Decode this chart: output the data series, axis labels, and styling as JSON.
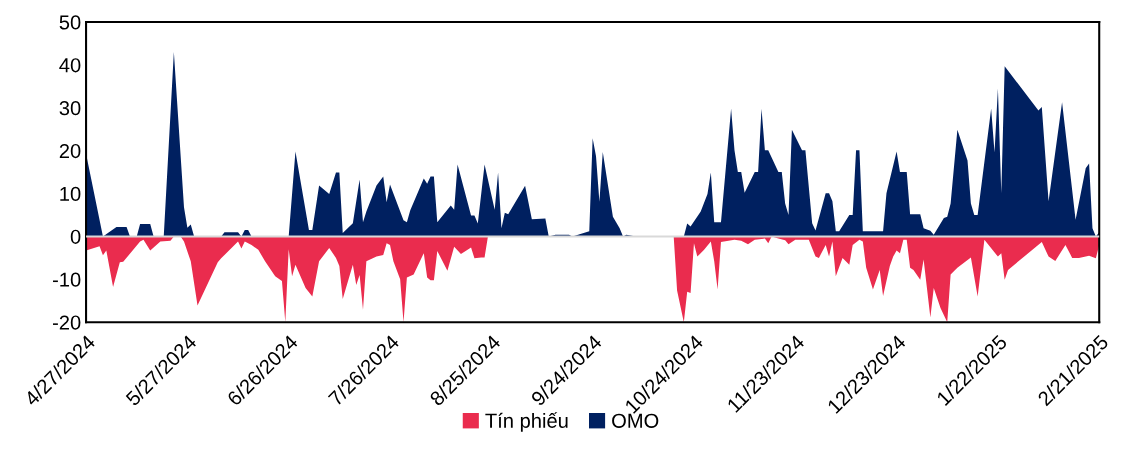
{
  "chart_data": {
    "type": "area",
    "ylim": [
      -20,
      50
    ],
    "yticks": [
      -20,
      -10,
      0,
      10,
      20,
      30,
      40,
      50
    ],
    "xlim": [
      "2024-04-27",
      "2025-02-21"
    ],
    "xticks": [
      {
        "value": "2024-04-27",
        "label": "4/27/2024"
      },
      {
        "value": "2024-05-27",
        "label": "5/27/2024"
      },
      {
        "value": "2024-06-26",
        "label": "6/26/2024"
      },
      {
        "value": "2024-07-26",
        "label": "7/26/2024"
      },
      {
        "value": "2024-08-25",
        "label": "8/25/2024"
      },
      {
        "value": "2024-09-24",
        "label": "9/24/2024"
      },
      {
        "value": "2024-10-24",
        "label": "10/24/2024"
      },
      {
        "value": "2024-11-23",
        "label": "11/23/2024"
      },
      {
        "value": "2024-12-23",
        "label": "12/23/2024"
      },
      {
        "value": "2025-01-22",
        "label": "1/22/2025"
      },
      {
        "value": "2025-02-21",
        "label": "2/21/2025"
      }
    ],
    "grid": false,
    "legend": "bottom",
    "ref_lines": [
      {
        "axis": "y",
        "value": 0,
        "label": null,
        "color": "#d9d9d9"
      }
    ],
    "series": [
      {
        "name": "Tín phiếu",
        "color": "#ea2c4e",
        "x": [
          "2024-04-27",
          "2024-05-01",
          "2024-05-02",
          "2024-05-03",
          "2024-05-05",
          "2024-05-07",
          "2024-05-08",
          "2024-05-13",
          "2024-05-14",
          "2024-05-16",
          "2024-05-19",
          "2024-05-22",
          "2024-05-23",
          "2024-05-25",
          "2024-05-26",
          "2024-05-28",
          "2024-05-30",
          "2024-06-05",
          "2024-06-06",
          "2024-06-11",
          "2024-06-12",
          "2024-06-13",
          "2024-06-15",
          "2024-06-17",
          "2024-06-19",
          "2024-06-22",
          "2024-06-24",
          "2024-06-25",
          "2024-06-26",
          "2024-06-27",
          "2024-06-28",
          "2024-07-01",
          "2024-07-03",
          "2024-07-05",
          "2024-07-08",
          "2024-07-10",
          "2024-07-11",
          "2024-07-12",
          "2024-07-15",
          "2024-07-16",
          "2024-07-17",
          "2024-07-18",
          "2024-07-19",
          "2024-07-22",
          "2024-07-24",
          "2024-07-25",
          "2024-07-26",
          "2024-07-27",
          "2024-07-29",
          "2024-07-30",
          "2024-07-31",
          "2024-08-02",
          "2024-08-05",
          "2024-08-06",
          "2024-08-07",
          "2024-08-08",
          "2024-08-09",
          "2024-08-12",
          "2024-08-14",
          "2024-08-16",
          "2024-08-19",
          "2024-08-20",
          "2024-08-22",
          "2024-08-23",
          "2024-08-24",
          "2024-10-18",
          "2024-10-19",
          "2024-10-21",
          "2024-10-22",
          "2024-10-23",
          "2024-10-24",
          "2024-10-25",
          "2024-10-27",
          "2024-10-29",
          "2024-10-30",
          "2024-10-31",
          "2024-11-01",
          "2024-11-05",
          "2024-11-07",
          "2024-11-09",
          "2024-11-11",
          "2024-11-14",
          "2024-11-15",
          "2024-11-16",
          "2024-11-18",
          "2024-11-20",
          "2024-11-21",
          "2024-11-23",
          "2024-11-27",
          "2024-11-29",
          "2024-11-30",
          "2024-12-02",
          "2024-12-03",
          "2024-12-04",
          "2024-12-05",
          "2024-12-07",
          "2024-12-09",
          "2024-12-10",
          "2024-12-12",
          "2024-12-13",
          "2024-12-14",
          "2024-12-16",
          "2024-12-18",
          "2024-12-19",
          "2024-12-21",
          "2024-12-22",
          "2024-12-23",
          "2024-12-24",
          "2024-12-25",
          "2024-12-26",
          "2024-12-27",
          "2024-12-28",
          "2024-12-30",
          "2024-12-31",
          "2025-01-02",
          "2025-01-03",
          "2025-01-05",
          "2025-01-07",
          "2025-01-08",
          "2025-01-10",
          "2025-01-14",
          "2025-01-16",
          "2025-01-18",
          "2025-01-22",
          "2025-01-23",
          "2025-01-24",
          "2025-01-25",
          "2025-02-04",
          "2025-02-06",
          "2025-02-08",
          "2025-02-11",
          "2025-02-13",
          "2025-02-15",
          "2025-02-18",
          "2025-02-20",
          "2025-02-21"
        ],
        "values": [
          -3.3,
          -2.3,
          -4.4,
          -3.3,
          -11.8,
          -6,
          -5.9,
          -1.2,
          -0.8,
          -3.3,
          -1.2,
          -1,
          0,
          0,
          -1.2,
          -5.8,
          -16.1,
          -6,
          -5.1,
          -1.2,
          -2.8,
          -1.2,
          -2,
          -3.1,
          -5.8,
          -9.3,
          -10.4,
          -20,
          -3,
          -9.3,
          -6.6,
          -12,
          -14,
          -5.8,
          -2.7,
          -5,
          -6.9,
          -14.6,
          -6.6,
          -11.3,
          -9,
          -17.1,
          -5.8,
          -4.7,
          -4.3,
          -1.6,
          -2,
          -5.8,
          -10,
          -20,
          -9.6,
          -8.9,
          -3.9,
          -9.6,
          -10.2,
          -10.2,
          -3.4,
          -8,
          -2.4,
          -4.1,
          -2.6,
          -5.1,
          -4.9,
          -4.9,
          0,
          0,
          -12.6,
          -20,
          -12.9,
          -13.2,
          -1.6,
          -4.7,
          -3.1,
          -1.2,
          -5.8,
          -12.4,
          -1.3,
          -0.8,
          -1,
          -1.8,
          -0.8,
          -0.5,
          -1.6,
          0,
          -0.5,
          -0.9,
          -1.8,
          -0.8,
          -0.8,
          -4.7,
          -5,
          -2,
          -4.7,
          -1.2,
          -9.3,
          -5,
          -6.6,
          -2,
          -0.8,
          -1.2,
          -7.3,
          -12.4,
          -7.8,
          -13.9,
          -6.9,
          -4.7,
          -3.3,
          -3.9,
          -0.8,
          -0.8,
          -7.3,
          -7.8,
          -10.1,
          -5.4,
          -18.9,
          -12,
          -16.7,
          -20,
          -8.9,
          -7.3,
          -4.9,
          -14,
          -0.8,
          -4.7,
          -3.9,
          -10.1,
          -7.8,
          -1.3,
          -4.7,
          -5.7,
          -2,
          -5,
          -5,
          -4.5,
          -5.1,
          -2
        ]
      },
      {
        "name": "OMO",
        "color": "#002060",
        "x": [
          "2024-04-27",
          "2024-05-02",
          "2024-05-06",
          "2024-05-09",
          "2024-05-10",
          "2024-05-12",
          "2024-05-13",
          "2024-05-16",
          "2024-05-17",
          "2024-05-20",
          "2024-05-23",
          "2024-05-26",
          "2024-05-27",
          "2024-05-28",
          "2024-05-29",
          "2024-06-06",
          "2024-06-07",
          "2024-06-11",
          "2024-06-12",
          "2024-06-13",
          "2024-06-14",
          "2024-06-15",
          "2024-06-26",
          "2024-06-28",
          "2024-07-02",
          "2024-07-03",
          "2024-07-05",
          "2024-07-08",
          "2024-07-10",
          "2024-07-11",
          "2024-07-12",
          "2024-07-15",
          "2024-07-17",
          "2024-07-18",
          "2024-07-19",
          "2024-07-22",
          "2024-07-24",
          "2024-07-25",
          "2024-07-26",
          "2024-07-30",
          "2024-07-31",
          "2024-08-01",
          "2024-08-05",
          "2024-08-06",
          "2024-08-07",
          "2024-08-08",
          "2024-08-09",
          "2024-08-13",
          "2024-08-14",
          "2024-08-15",
          "2024-08-19",
          "2024-08-20",
          "2024-08-21",
          "2024-08-23",
          "2024-08-26",
          "2024-08-27",
          "2024-08-28",
          "2024-08-29",
          "2024-08-30",
          "2024-09-04",
          "2024-09-06",
          "2024-09-10",
          "2024-09-11",
          "2024-09-13",
          "2024-09-17",
          "2024-09-18",
          "2024-09-23",
          "2024-09-24",
          "2024-09-25",
          "2024-09-26",
          "2024-09-27",
          "2024-09-30",
          "2024-10-02",
          "2024-10-03",
          "2024-10-04",
          "2024-10-06",
          "2024-10-07",
          "2024-10-21",
          "2024-10-22",
          "2024-10-23",
          "2024-10-26",
          "2024-10-28",
          "2024-10-29",
          "2024-10-30",
          "2024-11-01",
          "2024-11-04",
          "2024-11-05",
          "2024-11-06",
          "2024-11-07",
          "2024-11-08",
          "2024-11-11",
          "2024-11-12",
          "2024-11-13",
          "2024-11-14",
          "2024-11-15",
          "2024-11-18",
          "2024-11-19",
          "2024-11-20",
          "2024-11-21",
          "2024-11-22",
          "2024-11-25",
          "2024-11-26",
          "2024-11-28",
          "2024-11-29",
          "2024-12-02",
          "2024-12-03",
          "2024-12-04",
          "2024-12-05",
          "2024-12-06",
          "2024-12-09",
          "2024-12-10",
          "2024-12-11",
          "2024-12-12",
          "2024-12-13",
          "2024-12-19",
          "2024-12-20",
          "2024-12-23",
          "2024-12-24",
          "2024-12-26",
          "2024-12-27",
          "2024-12-30",
          "2024-12-31",
          "2025-01-02",
          "2025-01-03",
          "2025-01-06",
          "2025-01-07",
          "2025-01-08",
          "2025-01-10",
          "2025-01-13",
          "2025-01-14",
          "2025-01-15",
          "2025-01-16",
          "2025-01-20",
          "2025-01-21",
          "2025-01-22",
          "2025-01-23",
          "2025-01-24",
          "2025-02-03",
          "2025-02-04",
          "2025-02-06",
          "2025-02-10",
          "2025-02-14",
          "2025-02-17",
          "2025-02-18",
          "2025-02-19",
          "2025-02-20",
          "2025-02-21"
        ],
        "values": [
          19.3,
          0,
          2.2,
          2.2,
          0,
          0,
          2.9,
          2.9,
          0,
          0,
          43,
          6.8,
          2,
          2.8,
          0,
          0,
          1,
          1,
          0,
          1.5,
          1.5,
          0,
          0,
          19.8,
          1.5,
          1.5,
          11.9,
          9.9,
          14.9,
          14.9,
          0.8,
          3.1,
          13.3,
          3.3,
          5.8,
          11.9,
          14,
          8,
          12.1,
          3.8,
          3.3,
          6.1,
          13.5,
          12.3,
          14,
          14,
          3.3,
          7.2,
          6.2,
          16.8,
          4.9,
          4.9,
          3,
          16.8,
          6.2,
          14.9,
          1.9,
          5.5,
          5.2,
          11.8,
          4,
          4.2,
          0,
          0.4,
          0.4,
          0,
          1.2,
          22.9,
          18.7,
          8.1,
          19.7,
          4.6,
          1.9,
          0,
          0.4,
          0.1,
          0,
          0,
          3,
          2.3,
          5.8,
          9.9,
          14.9,
          3.3,
          3.3,
          29.8,
          20.1,
          15,
          15,
          10.2,
          15,
          15,
          29.8,
          20.1,
          20.1,
          15,
          15,
          7.7,
          5,
          24.9,
          20.1,
          20.1,
          3.1,
          1.4,
          10.1,
          10.1,
          8.2,
          1.2,
          1.2,
          5,
          5,
          20.1,
          20.1,
          1.2,
          1.2,
          10.1,
          19.8,
          15,
          15,
          5.2,
          5.2,
          1.9,
          1.3,
          0.4,
          4.3,
          4.6,
          7.7,
          24.9,
          17.7,
          7.7,
          5,
          5,
          29.8,
          19.6,
          34.5,
          10.1,
          39.7,
          29.4,
          30.2,
          8.2,
          31.3,
          3.9,
          15.9,
          17,
          1.9,
          0,
          1
        ]
      }
    ]
  }
}
